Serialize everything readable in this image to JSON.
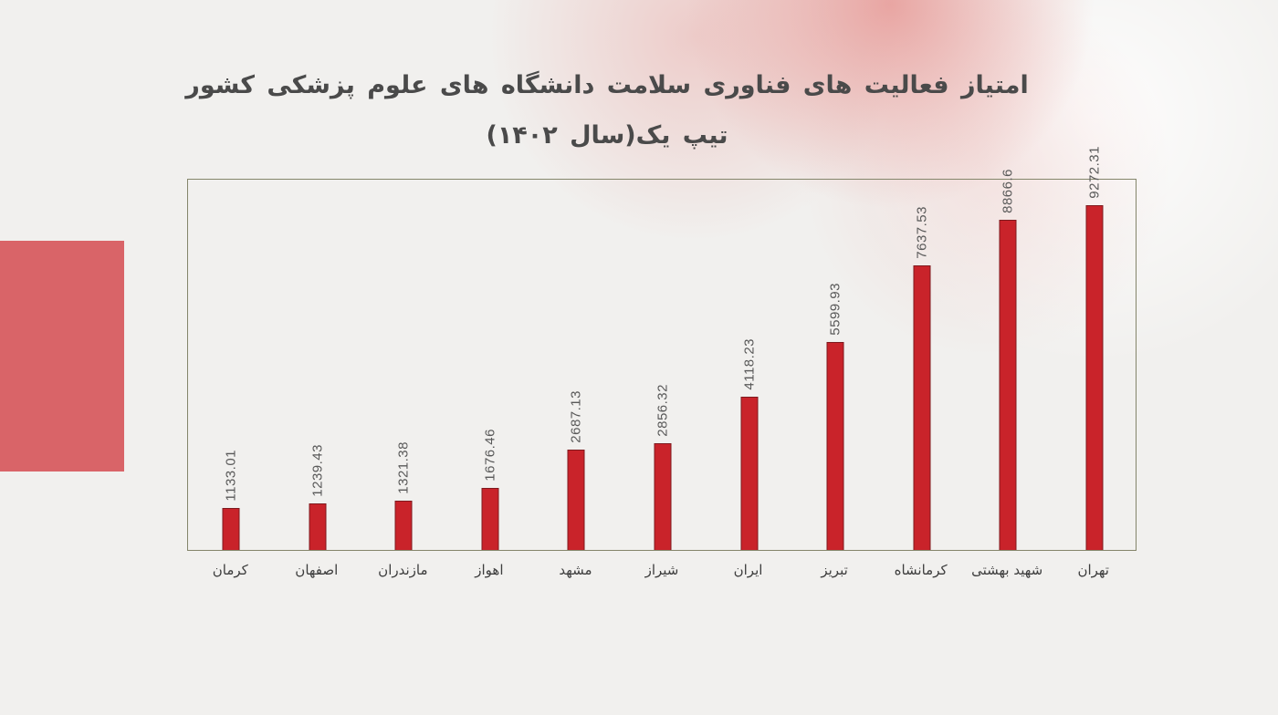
{
  "slide": {
    "background_color": "#f1f0ee",
    "accent_rect_color": "#d96468",
    "glow_color": "#e79895"
  },
  "title": {
    "line1": "امتیاز فعالیت های فناوری سلامت دانشگاه های علوم پزشکی کشور",
    "line2": "تیپ یک(سال ۱۴۰۲)",
    "color": "#4a4a4a"
  },
  "chart_data": {
    "type": "bar",
    "title": "امتیاز فعالیت های فناوری سلامت دانشگاه های علوم پزشکی کشور تیپ یک(سال ۱۴۰۲)",
    "categories": [
      "کرمان",
      "اصفهان",
      "مازندران",
      "اهواز",
      "مشهد",
      "شیراز",
      "ایران",
      "تبریز",
      "کرمانشاه",
      "شهید بهشتی",
      "تهران"
    ],
    "values": [
      1133.01,
      1239.43,
      1321.38,
      1676.46,
      2687.13,
      2856.32,
      4118.23,
      5599.93,
      7637.53,
      8866.6,
      9272.31
    ],
    "value_labels": [
      "1133.01",
      "1239.43",
      "1321.38",
      "1676.46",
      "2687.13",
      "2856.32",
      "4118.23",
      "5599.93",
      "7637.53",
      "8866.6",
      "9272.31"
    ],
    "xlabel": "",
    "ylabel": "",
    "ylim": [
      0,
      10000
    ],
    "grid": false,
    "legend": "none",
    "value_label_rotation": "vertical-bottom-to-top",
    "category_order": "ascending-left-to-right",
    "bar_color": "#c9232a",
    "bar_border_color": "#7e1a1e",
    "value_label_color": "#595959",
    "category_label_color": "#3d3d3d",
    "frame_border_color": "#84856a"
  }
}
